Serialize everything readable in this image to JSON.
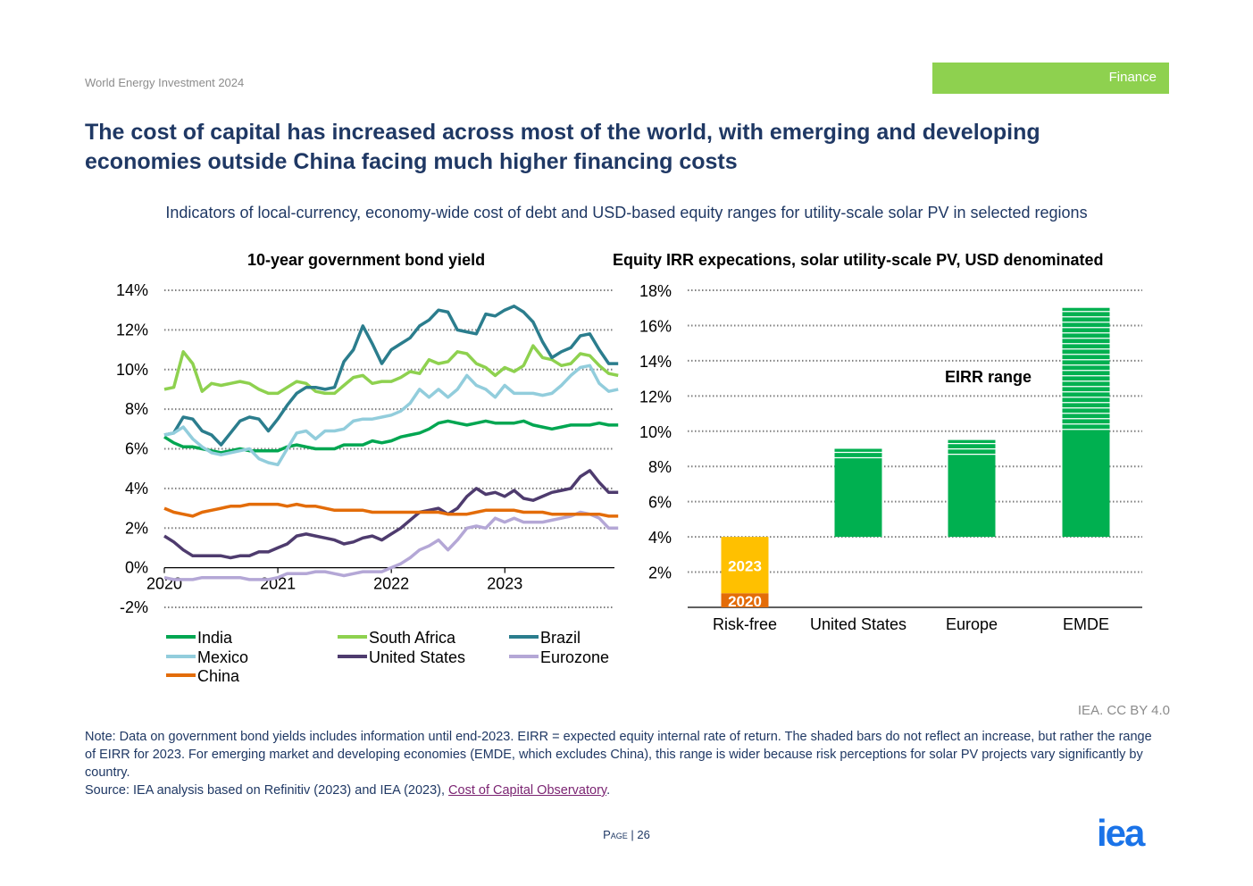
{
  "header": {
    "publication": "World Energy Investment 2024",
    "section_tag": "Finance"
  },
  "title": "The cost of capital has increased across most of the world, with emerging and developing economies outside China facing much higher financing costs",
  "subtitle": "Indicators of local-currency, economy-wide cost of debt and USD-based equity ranges for utility-scale solar PV in selected regions",
  "footer": {
    "credit": "IEA. CC BY 4.0",
    "note": "Note: Data on government bond yields includes information until end-2023. EIRR = expected equity internal rate of return. The shaded bars do not reflect an increase, but rather the range of EIRR for 2023. For emerging market and developing economies (EMDE, which excludes China), this range is wider because risk perceptions for solar PV projects vary significantly by country.",
    "source_prefix": "Source: IEA analysis based on Refinitiv (2023) and IEA (2023), ",
    "source_link": "Cost of Capital Observatory",
    "source_suffix": ".",
    "page_label": "Page",
    "page_sep": "|",
    "page_number": "26",
    "logo": "iea"
  },
  "chart_data": [
    {
      "type": "line",
      "title": "10-year government bond yield",
      "ylim": [
        -2,
        14
      ],
      "yticks": [
        -2,
        0,
        2,
        4,
        6,
        8,
        10,
        12,
        14
      ],
      "ytick_labels": [
        "-2%",
        "0%",
        "2%",
        "4%",
        "6%",
        "8%",
        "10%",
        "12%",
        "14%"
      ],
      "xlim": [
        2020,
        2023.95
      ],
      "xticks": [
        2020,
        2021,
        2022,
        2023
      ],
      "xtick_labels": [
        "2020",
        "2021",
        "2022",
        "2023"
      ],
      "x_step": 0.0833,
      "x_start": 2020,
      "grid": "horizontal dotted",
      "legend_position": "bottom",
      "series": [
        {
          "name": "India",
          "color": "#00a651",
          "values": [
            6.6,
            6.3,
            6.1,
            6.1,
            6.0,
            5.9,
            5.8,
            5.9,
            6.0,
            5.9,
            5.9,
            5.9,
            5.9,
            6.1,
            6.2,
            6.1,
            6.0,
            6.0,
            6.0,
            6.2,
            6.2,
            6.2,
            6.4,
            6.3,
            6.4,
            6.6,
            6.7,
            6.8,
            7.0,
            7.3,
            7.4,
            7.3,
            7.2,
            7.3,
            7.4,
            7.3,
            7.3,
            7.3,
            7.4,
            7.2,
            7.1,
            7.0,
            7.1,
            7.2,
            7.2,
            7.2,
            7.3,
            7.2,
            7.2
          ]
        },
        {
          "name": "South Africa",
          "color": "#8ed14f",
          "values": [
            9.0,
            9.1,
            10.9,
            10.3,
            8.9,
            9.3,
            9.2,
            9.3,
            9.4,
            9.3,
            9.0,
            8.8,
            8.8,
            9.1,
            9.4,
            9.3,
            8.9,
            8.8,
            8.8,
            9.2,
            9.6,
            9.7,
            9.3,
            9.4,
            9.4,
            9.6,
            9.9,
            9.8,
            10.5,
            10.3,
            10.4,
            10.9,
            10.8,
            10.3,
            10.1,
            9.7,
            10.1,
            9.9,
            10.2,
            11.2,
            10.6,
            10.5,
            10.2,
            10.3,
            10.8,
            10.7,
            10.2,
            9.8,
            9.7
          ]
        },
        {
          "name": "Brazil",
          "color": "#2b7d8d",
          "values": [
            6.7,
            6.8,
            7.6,
            7.5,
            6.9,
            6.7,
            6.2,
            6.8,
            7.4,
            7.6,
            7.5,
            6.9,
            7.5,
            8.2,
            8.8,
            9.1,
            9.1,
            9.0,
            9.1,
            10.4,
            11.0,
            12.2,
            11.3,
            10.3,
            11.0,
            11.3,
            11.6,
            12.2,
            12.5,
            13.0,
            12.9,
            12.0,
            11.9,
            11.8,
            12.8,
            12.7,
            13.0,
            13.2,
            12.9,
            12.4,
            11.4,
            10.6,
            10.9,
            11.1,
            11.7,
            11.8,
            11.0,
            10.3,
            10.3
          ]
        },
        {
          "name": "Mexico",
          "color": "#92cddc",
          "values": [
            6.7,
            6.8,
            7.1,
            6.5,
            6.1,
            5.8,
            5.7,
            5.8,
            5.9,
            6.0,
            5.5,
            5.3,
            5.2,
            6.0,
            6.8,
            6.9,
            6.5,
            6.9,
            6.9,
            7.0,
            7.4,
            7.5,
            7.5,
            7.6,
            7.7,
            7.9,
            8.3,
            9.0,
            8.6,
            9.0,
            8.6,
            9.0,
            9.7,
            9.2,
            9.0,
            8.6,
            9.2,
            8.8,
            8.8,
            8.8,
            8.7,
            8.8,
            9.2,
            9.7,
            10.1,
            10.2,
            9.3,
            8.9,
            9.0
          ]
        },
        {
          "name": "United States",
          "color": "#4e3b6e",
          "values": [
            1.6,
            1.3,
            0.9,
            0.6,
            0.6,
            0.6,
            0.6,
            0.5,
            0.6,
            0.6,
            0.8,
            0.8,
            1.0,
            1.2,
            1.6,
            1.7,
            1.6,
            1.5,
            1.4,
            1.2,
            1.3,
            1.5,
            1.6,
            1.4,
            1.7,
            2.0,
            2.4,
            2.8,
            2.9,
            3.0,
            2.7,
            3.0,
            3.6,
            4.0,
            3.7,
            3.8,
            3.6,
            3.9,
            3.5,
            3.4,
            3.6,
            3.8,
            3.9,
            4.0,
            4.6,
            4.9,
            4.3,
            3.8,
            3.8
          ]
        },
        {
          "name": "Eurozone",
          "color": "#b4a7d6",
          "values": [
            -0.5,
            -0.6,
            -0.6,
            -0.6,
            -0.5,
            -0.5,
            -0.5,
            -0.5,
            -0.5,
            -0.6,
            -0.6,
            -0.6,
            -0.5,
            -0.3,
            -0.3,
            -0.3,
            -0.2,
            -0.2,
            -0.3,
            -0.4,
            -0.3,
            -0.2,
            -0.2,
            -0.2,
            0.0,
            0.2,
            0.5,
            0.9,
            1.1,
            1.4,
            0.9,
            1.4,
            2.0,
            2.1,
            2.0,
            2.5,
            2.3,
            2.5,
            2.3,
            2.3,
            2.3,
            2.4,
            2.5,
            2.6,
            2.8,
            2.7,
            2.5,
            2.0,
            2.0
          ]
        },
        {
          "name": "China",
          "color": "#e36c09",
          "values": [
            3.0,
            2.8,
            2.7,
            2.6,
            2.8,
            2.9,
            3.0,
            3.1,
            3.1,
            3.2,
            3.2,
            3.2,
            3.2,
            3.1,
            3.2,
            3.1,
            3.1,
            3.0,
            2.9,
            2.9,
            2.9,
            2.9,
            2.8,
            2.8,
            2.8,
            2.8,
            2.8,
            2.8,
            2.8,
            2.8,
            2.7,
            2.7,
            2.7,
            2.8,
            2.9,
            2.9,
            2.9,
            2.9,
            2.8,
            2.8,
            2.8,
            2.7,
            2.7,
            2.7,
            2.7,
            2.7,
            2.7,
            2.6,
            2.6
          ]
        }
      ]
    },
    {
      "type": "bar",
      "title": "Equity IRR expecations, solar utility-scale PV, USD denominated",
      "ylim": [
        0,
        18
      ],
      "yticks": [
        2,
        4,
        6,
        8,
        10,
        12,
        14,
        16,
        18
      ],
      "ytick_labels": [
        "2%",
        "4%",
        "6%",
        "8%",
        "10%",
        "12%",
        "14%",
        "16%",
        "18%"
      ],
      "categories": [
        "Risk-free",
        "United States",
        "Europe",
        "EMDE"
      ],
      "annotation": "EIRR range",
      "risk_free": [
        {
          "label": "2020",
          "from": 0,
          "to": 0.8,
          "color": "#e36c09"
        },
        {
          "label": "2023",
          "from": 0.8,
          "to": 4.0,
          "color": "#ffc000"
        }
      ],
      "ranges": [
        {
          "category": "United States",
          "from": 4.0,
          "to": 9.0,
          "color": "#00b050"
        },
        {
          "category": "Europe",
          "from": 4.0,
          "to": 9.5,
          "color": "#00b050"
        },
        {
          "category": "EMDE",
          "from": 4.0,
          "to": 17.0,
          "color": "#00b050"
        }
      ]
    }
  ]
}
